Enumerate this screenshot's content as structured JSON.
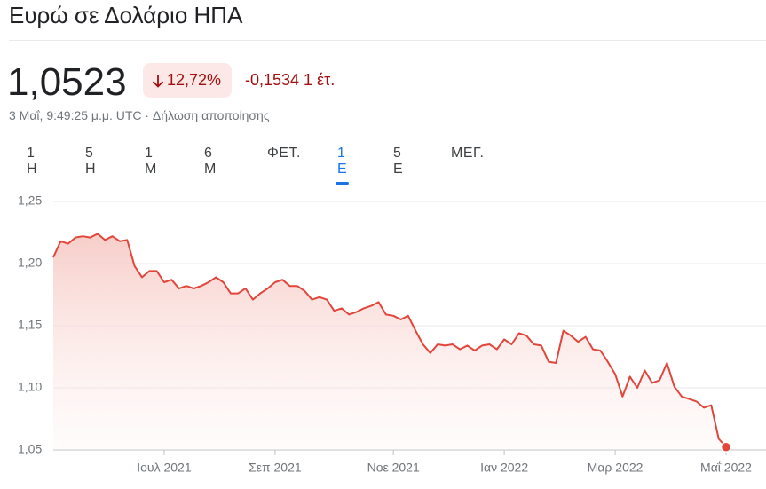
{
  "header": {
    "title": "Ευρώ σε Δολάριο ΗΠΑ",
    "price": "1,0523",
    "change_percent": "12,72%",
    "change_abs": "-0,1534 1 έτ.",
    "timestamp": "3 Μαΐ, 9:49:25 μ.μ. UTC · Δήλωση αποποίησης"
  },
  "tabs": [
    "1 Η",
    "5 Η",
    "1 Μ",
    "6 Μ",
    "ΦΕΤ.",
    "1 Ε",
    "5 Ε",
    "ΜΕΓ."
  ],
  "selected_tab": 5,
  "chart_data": {
    "type": "line",
    "color": "#e2463b",
    "grid": true,
    "ylim": [
      1.05,
      1.25
    ],
    "yticks": [
      {
        "value": 1.05,
        "label": "1,05"
      },
      {
        "value": 1.1,
        "label": "1,10"
      },
      {
        "value": 1.15,
        "label": "1,15"
      },
      {
        "value": 1.2,
        "label": "1,20"
      },
      {
        "value": 1.25,
        "label": "1,25"
      }
    ],
    "categories": [
      null,
      null,
      null,
      null,
      null,
      null,
      null,
      null,
      null,
      null,
      null,
      null,
      null,
      null,
      null,
      "Ιουλ 2021",
      null,
      null,
      null,
      null,
      null,
      null,
      null,
      null,
      null,
      null,
      null,
      null,
      null,
      null,
      "Σεπ 2021",
      null,
      null,
      null,
      null,
      null,
      null,
      null,
      null,
      null,
      null,
      null,
      null,
      null,
      null,
      null,
      "Νοε 2021",
      null,
      null,
      null,
      null,
      null,
      null,
      null,
      null,
      null,
      null,
      null,
      null,
      null,
      null,
      "Ιαν 2022",
      null,
      null,
      null,
      null,
      null,
      null,
      null,
      null,
      null,
      null,
      null,
      null,
      null,
      null,
      "Μαρ 2022",
      null,
      null,
      null,
      null,
      null,
      null,
      null,
      null,
      null,
      null,
      null,
      null,
      null,
      null,
      "Μαΐ 2022"
    ],
    "values": [
      1.205,
      1.218,
      1.216,
      1.221,
      1.222,
      1.221,
      1.224,
      1.219,
      1.222,
      1.218,
      1.219,
      1.198,
      1.189,
      1.194,
      1.194,
      1.185,
      1.187,
      1.18,
      1.182,
      1.18,
      1.182,
      1.185,
      1.189,
      1.185,
      1.176,
      1.176,
      1.18,
      1.171,
      1.176,
      1.18,
      1.185,
      1.187,
      1.182,
      1.182,
      1.178,
      1.171,
      1.173,
      1.171,
      1.162,
      1.164,
      1.159,
      1.161,
      1.164,
      1.166,
      1.169,
      1.159,
      1.158,
      1.155,
      1.158,
      1.146,
      1.135,
      1.128,
      1.135,
      1.134,
      1.135,
      1.131,
      1.134,
      1.13,
      1.134,
      1.135,
      1.131,
      1.139,
      1.135,
      1.144,
      1.142,
      1.135,
      1.134,
      1.121,
      1.12,
      1.146,
      1.142,
      1.137,
      1.141,
      1.131,
      1.13,
      1.121,
      1.111,
      1.093,
      1.109,
      1.1,
      1.114,
      1.104,
      1.106,
      1.12,
      1.101,
      1.093,
      1.091,
      1.089,
      1.084,
      1.086,
      1.059,
      1.0523
    ]
  }
}
